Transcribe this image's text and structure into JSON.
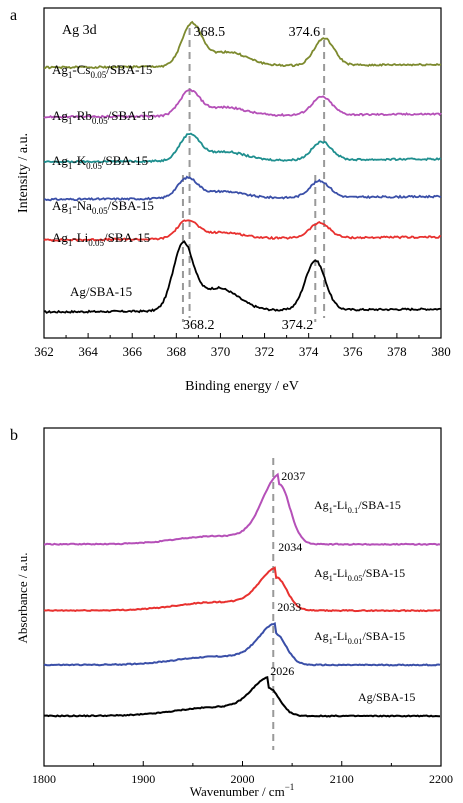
{
  "colors": {
    "black": "#000000",
    "red": "#e8312f",
    "blue": "#3a4fa8",
    "teal": "#1f8f8f",
    "magenta": "#b550b8",
    "olive": "#7d8a2e",
    "dash": "#999999"
  },
  "chart_data": [
    {
      "panel_label": "a",
      "type": "line",
      "title": "Ag 3d",
      "xlabel": "Binding energy / eV",
      "ylabel": "Intensity / a.u.",
      "xlim": [
        362,
        380
      ],
      "xticks": [
        362,
        364,
        366,
        368,
        370,
        372,
        374,
        376,
        378,
        380
      ],
      "x_reversed": false,
      "grid": false,
      "series": [
        {
          "label_main": "Ag/SBA-15",
          "label_sub": "",
          "label_tail": "",
          "color": "black",
          "baseline": 0.0,
          "peak1": {
            "x": 368.3,
            "h": 0.43
          },
          "peak2": {
            "x": 374.3,
            "h": 0.33
          }
        },
        {
          "label_main": "Ag",
          "label_sub": "1",
          "label_mid": "-Li",
          "label_sub2": "0.05",
          "label_tail": "/SBA-15",
          "color": "red",
          "baseline": 0.48,
          "peak1": {
            "x": 368.5,
            "h": 0.12
          },
          "peak2": {
            "x": 374.5,
            "h": 0.1
          }
        },
        {
          "label_main": "Ag",
          "label_sub": "1",
          "label_mid": "-Na",
          "label_sub2": "0.05",
          "label_tail": "/SBA-15",
          "color": "blue",
          "baseline": 0.75,
          "peak1": {
            "x": 368.5,
            "h": 0.13
          },
          "peak2": {
            "x": 374.5,
            "h": 0.11
          }
        },
        {
          "label_main": "Ag",
          "label_sub": "1",
          "label_mid": "-K",
          "label_sub2": "0.05",
          "label_tail": "/SBA-15",
          "color": "teal",
          "baseline": 1.0,
          "peak1": {
            "x": 368.6,
            "h": 0.17
          },
          "peak2": {
            "x": 374.6,
            "h": 0.12
          }
        },
        {
          "label_main": "Ag",
          "label_sub": "1",
          "label_mid": "-Rb",
          "label_sub2": "0.05",
          "label_tail": "/SBA-15",
          "color": "magenta",
          "baseline": 1.3,
          "peak1": {
            "x": 368.6,
            "h": 0.16
          },
          "peak2": {
            "x": 374.6,
            "h": 0.12
          }
        },
        {
          "label_main": "Ag",
          "label_sub": "1",
          "label_mid": "-Cs",
          "label_sub2": "0.05",
          "label_tail": "/SBA-15",
          "color": "olive",
          "baseline": 1.63,
          "peak1": {
            "x": 368.7,
            "h": 0.27
          },
          "peak2": {
            "x": 374.7,
            "h": 0.18
          }
        }
      ],
      "annotations": [
        {
          "text": "368.5",
          "x": 368.6,
          "dashed_line": true
        },
        {
          "text": "374.6",
          "x": 374.7,
          "dashed_line": true
        },
        {
          "text": "368.2",
          "x": 368.3,
          "dashed_line": true
        },
        {
          "text": "374.2",
          "x": 374.3,
          "dashed_line": true
        }
      ]
    },
    {
      "panel_label": "b",
      "type": "line",
      "title": "",
      "xlabel": "Wavenumber / cm",
      "xlabel_sup": "−1",
      "ylabel": "Absorbance / a.u.",
      "xlim": [
        1800,
        2200
      ],
      "xticks": [
        1800,
        1900,
        2000,
        2100,
        2200
      ],
      "grid": false,
      "series": [
        {
          "label_main": "Ag/SBA-15",
          "label_sub": "",
          "label_tail": "",
          "color": "black",
          "baseline": 0.0,
          "peak": {
            "x": 2026,
            "h": 0.16,
            "value": "2026"
          }
        },
        {
          "label_main": "Ag",
          "label_sub": "1",
          "label_mid": "-Li",
          "label_sub2": "0.01",
          "label_tail": "/SBA-15",
          "color": "blue",
          "baseline": 0.3,
          "peak": {
            "x": 2033,
            "h": 0.18,
            "value": "2033"
          }
        },
        {
          "label_main": "Ag",
          "label_sub": "1",
          "label_mid": "-Li",
          "label_sub2": "0.05",
          "label_tail": "/SBA-15",
          "color": "red",
          "baseline": 0.62,
          "peak": {
            "x": 2034,
            "h": 0.19,
            "value": "2034"
          }
        },
        {
          "label_main": "Ag",
          "label_sub": "1",
          "label_mid": "-Li",
          "label_sub2": "0.1",
          "label_tail": "/SBA-15",
          "color": "magenta",
          "baseline": 1.01,
          "peak": {
            "x": 2037,
            "h": 0.35,
            "value": "2037"
          }
        }
      ],
      "annotations": [
        {
          "x": 2031,
          "dashed_line": true
        }
      ]
    }
  ]
}
